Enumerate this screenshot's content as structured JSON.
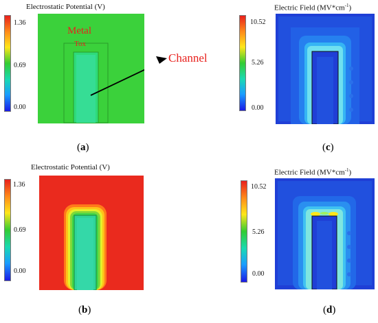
{
  "panels": {
    "a": {
      "title": "Electrostatic Potential (V)",
      "ticks": [
        "1.36",
        "0.69",
        "0.00"
      ],
      "label_open": "(",
      "label_letter": "a",
      "label_close": ")",
      "annotations": {
        "metal": "Metal",
        "tox": "Tox",
        "channel": "Channel"
      }
    },
    "b": {
      "title": "Electrostatic Potential (V)",
      "ticks": [
        "1.36",
        "0.69",
        "0.00"
      ],
      "label_open": "(",
      "label_letter": "b",
      "label_close": ")"
    },
    "c": {
      "title_main": "Electric Field (MV*cm",
      "title_sup": "-1",
      "title_end": ")",
      "ticks": [
        "10.52",
        "5.26",
        "0.00"
      ],
      "label_open": "(",
      "label_letter": "c",
      "label_close": ")"
    },
    "d": {
      "title_main": "Electric Field (MV*cm",
      "title_sup": "-1",
      "title_end": ")",
      "ticks": [
        "10.52",
        "5.26",
        "0.00"
      ],
      "label_open": "(",
      "label_letter": "d",
      "label_close": ")"
    }
  },
  "colors": {
    "colormap": [
      "#e8201c",
      "#ff8c1a",
      "#ffe61a",
      "#33cc33",
      "#1ad9b3",
      "#1a9cff",
      "#1a1ae6"
    ],
    "annotation": "#e8201c",
    "potential_green": "#3bd13b",
    "potential_red": "#ea2a1e",
    "field_blue": "#1f4ae0"
  }
}
